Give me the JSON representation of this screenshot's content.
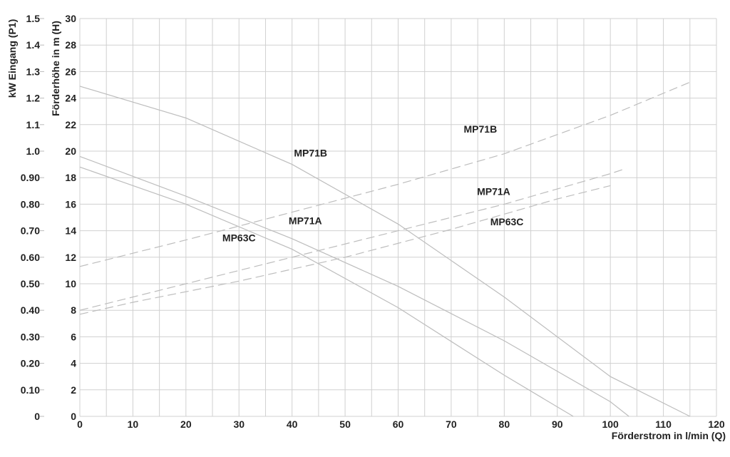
{
  "chart_data": {
    "type": "line",
    "x_axis": {
      "label": "Förderstrom in l/min (Q)",
      "range": [
        0,
        120
      ],
      "ticks": [
        "0",
        "10",
        "20",
        "30",
        "40",
        "50",
        "60",
        "70",
        "80",
        "90",
        "100",
        "110",
        "120"
      ]
    },
    "y_axis_left": {
      "label": "Förderhöhe in m (H)",
      "range": [
        0,
        30
      ],
      "ticks": [
        "0",
        "2",
        "4",
        "6",
        "8",
        "10",
        "12",
        "14",
        "16",
        "18",
        "20",
        "22",
        "24",
        "26",
        "28",
        "30"
      ]
    },
    "y_axis_power": {
      "label": "kW Eingang (P1)",
      "range": [
        0,
        1.5
      ],
      "ticks": [
        "0",
        "0.10",
        "0.20",
        "0.30",
        "0.40",
        "0.50",
        "0.60",
        "0.70",
        "0.80",
        "0.90",
        "1.0",
        "1.1",
        "1.2",
        "1.3",
        "1.4",
        "1.5"
      ]
    },
    "grid": true,
    "series": [
      {
        "name": "MP71B",
        "kind": "head",
        "style": "solid",
        "color": "#bdbdbd",
        "x": [
          0,
          20,
          40,
          60,
          80,
          100,
          115
        ],
        "y": [
          24.9,
          22.5,
          19,
          14.5,
          9,
          3,
          0
        ]
      },
      {
        "name": "MP71A",
        "kind": "head",
        "style": "solid",
        "color": "#bdbdbd",
        "x": [
          0,
          20,
          40,
          60,
          80,
          100,
          103.5
        ],
        "y": [
          19.6,
          16.6,
          13.4,
          9.8,
          5.7,
          1.1,
          0
        ]
      },
      {
        "name": "MP63C",
        "kind": "head",
        "style": "solid",
        "color": "#bdbdbd",
        "x": [
          0,
          20,
          40,
          60,
          80,
          93
        ],
        "y": [
          18.8,
          16,
          12.6,
          8.2,
          3.1,
          0
        ]
      },
      {
        "name": "MP71B",
        "kind": "power",
        "style": "dashed",
        "color": "#bdbdbd",
        "x": [
          0,
          20,
          40,
          60,
          80,
          100,
          115
        ],
        "y": [
          0.565,
          0.665,
          0.77,
          0.875,
          0.99,
          1.135,
          1.26
        ]
      },
      {
        "name": "MP71A",
        "kind": "power",
        "style": "dashed",
        "color": "#bdbdbd",
        "x": [
          0,
          20,
          40,
          60,
          80,
          100,
          103
        ],
        "y": [
          0.4,
          0.5,
          0.6,
          0.7,
          0.8,
          0.915,
          0.935
        ]
      },
      {
        "name": "MP63C",
        "kind": "power",
        "style": "dashed",
        "color": "#bdbdbd",
        "x": [
          0,
          10,
          30,
          50,
          70,
          90,
          100
        ],
        "y": [
          0.385,
          0.43,
          0.51,
          0.6,
          0.705,
          0.82,
          0.87
        ]
      }
    ],
    "annotations": [
      {
        "text": "MP71B",
        "x": 43.5,
        "y": 19.6
      },
      {
        "text": "MP71A",
        "x": 42.5,
        "y": 14.5
      },
      {
        "text": "MP63C",
        "x": 30,
        "y": 13.2
      },
      {
        "text": "MP71B",
        "x": 75.5,
        "y": 21.4
      },
      {
        "text": "MP71A",
        "x": 78,
        "y": 16.7
      },
      {
        "text": "MP63C",
        "x": 80.5,
        "y": 14.4
      }
    ]
  }
}
